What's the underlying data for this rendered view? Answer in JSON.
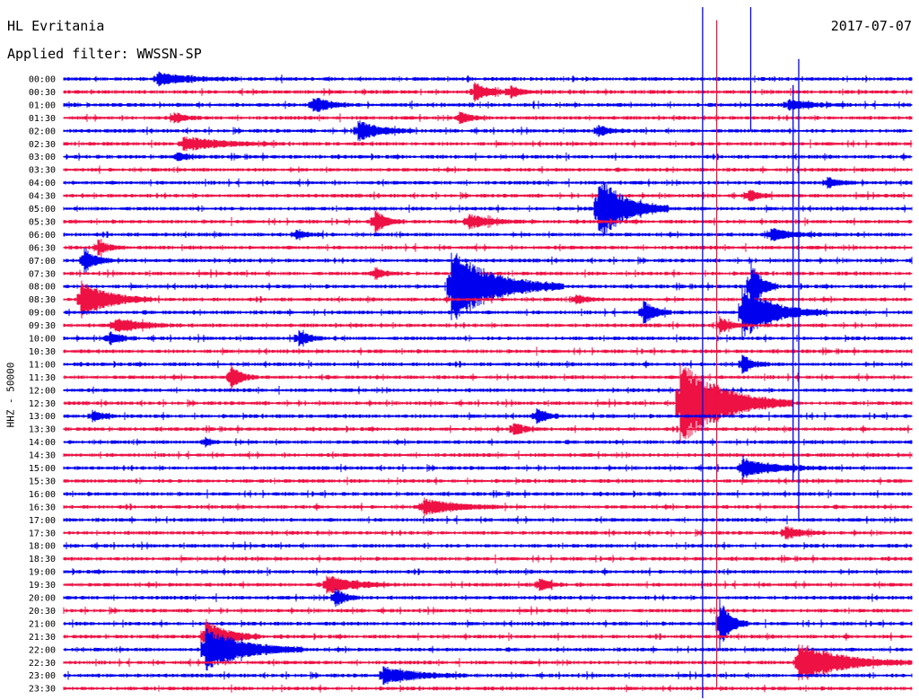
{
  "header": {
    "station": "HL Evritania",
    "date": "2017-07-07",
    "filter_label": "Applied filter: WWSSN-SP"
  },
  "channel_label": "HHZ - 50000",
  "colors": {
    "odd": "#0000ee",
    "even": "#ee1144"
  },
  "chart_data": {
    "type": "line",
    "description": "helicorder",
    "title": "HL Evritania",
    "xlabel": "",
    "ylabel": "HHZ - 50000",
    "row_labels": [
      "00:00",
      "00:30",
      "01:00",
      "01:30",
      "02:00",
      "02:30",
      "03:00",
      "03:30",
      "04:00",
      "04:30",
      "05:00",
      "05:30",
      "06:00",
      "06:30",
      "07:00",
      "07:30",
      "08:00",
      "08:30",
      "09:00",
      "09:30",
      "10:00",
      "10:30",
      "11:00",
      "11:30",
      "12:00",
      "12:30",
      "13:00",
      "13:30",
      "14:00",
      "14:30",
      "15:00",
      "15:30",
      "16:00",
      "16:30",
      "17:00",
      "17:30",
      "18:00",
      "18:30",
      "19:00",
      "19:30",
      "20:00",
      "20:30",
      "21:00",
      "21:30",
      "22:00",
      "22:30",
      "23:00",
      "23:30"
    ],
    "minutes_per_row": 30,
    "series_colors": [
      "#0000ee",
      "#ee1144"
    ],
    "events": [
      {
        "row": 0,
        "minute": 3.3,
        "amp": 7,
        "len": 3
      },
      {
        "row": 1,
        "minute": 14.5,
        "amp": 10,
        "len": 1.5
      },
      {
        "row": 1,
        "minute": 15.8,
        "amp": 7,
        "len": 1
      },
      {
        "row": 2,
        "minute": 8.8,
        "amp": 10,
        "len": 1.5
      },
      {
        "row": 2,
        "minute": 25.6,
        "amp": 6,
        "len": 2
      },
      {
        "row": 3,
        "minute": 3.9,
        "amp": 6,
        "len": 1
      },
      {
        "row": 3,
        "minute": 14.0,
        "amp": 7,
        "len": 1
      },
      {
        "row": 4,
        "minute": 10.4,
        "amp": 12,
        "len": 2
      },
      {
        "row": 4,
        "minute": 18.9,
        "amp": 7,
        "len": 1
      },
      {
        "row": 5,
        "minute": 4.2,
        "amp": 8,
        "len": 3.5
      },
      {
        "row": 6,
        "minute": 4.0,
        "amp": 5,
        "len": 1
      },
      {
        "row": 8,
        "minute": 27.0,
        "amp": 6,
        "len": 1
      },
      {
        "row": 9,
        "minute": 24.2,
        "amp": 8,
        "len": 1
      },
      {
        "row": 10,
        "minute": 18.9,
        "amp": 38,
        "len": 2.5
      },
      {
        "row": 11,
        "minute": 11.0,
        "amp": 14,
        "len": 1
      },
      {
        "row": 11,
        "minute": 14.3,
        "amp": 8,
        "len": 2
      },
      {
        "row": 12,
        "minute": 8.2,
        "amp": 5,
        "len": 1
      },
      {
        "row": 12,
        "minute": 25.0,
        "amp": 7,
        "len": 2
      },
      {
        "row": 13,
        "minute": 1.2,
        "amp": 9,
        "len": 1
      },
      {
        "row": 14,
        "minute": 0.7,
        "amp": 16,
        "len": 1
      },
      {
        "row": 15,
        "minute": 11.0,
        "amp": 6,
        "len": 1
      },
      {
        "row": 16,
        "minute": 13.7,
        "amp": 42,
        "len": 4
      },
      {
        "row": 16,
        "minute": 24.3,
        "amp": 30,
        "len": 1
      },
      {
        "row": 17,
        "minute": 0.6,
        "amp": 22,
        "len": 2.5
      },
      {
        "row": 17,
        "minute": 18.1,
        "amp": 6,
        "len": 1
      },
      {
        "row": 18,
        "minute": 20.5,
        "amp": 14,
        "len": 1
      },
      {
        "row": 18,
        "minute": 24.0,
        "amp": 30,
        "len": 3
      },
      {
        "row": 19,
        "minute": 1.8,
        "amp": 8,
        "len": 2.5
      },
      {
        "row": 19,
        "minute": 23.2,
        "amp": 10,
        "len": 1
      },
      {
        "row": 20,
        "minute": 1.6,
        "amp": 8,
        "len": 1
      },
      {
        "row": 20,
        "minute": 8.3,
        "amp": 9,
        "len": 1
      },
      {
        "row": 22,
        "minute": 24.0,
        "amp": 10,
        "len": 1
      },
      {
        "row": 23,
        "minute": 5.9,
        "amp": 14,
        "len": 1
      },
      {
        "row": 25,
        "minute": 21.8,
        "amp": 50,
        "len": 4
      },
      {
        "row": 26,
        "minute": 1.0,
        "amp": 6,
        "len": 1
      },
      {
        "row": 26,
        "minute": 16.7,
        "amp": 10,
        "len": 1
      },
      {
        "row": 27,
        "minute": 15.9,
        "amp": 8,
        "len": 1
      },
      {
        "row": 28,
        "minute": 5.0,
        "amp": 6,
        "len": 0.5
      },
      {
        "row": 30,
        "minute": 24.0,
        "amp": 10,
        "len": 3
      },
      {
        "row": 33,
        "minute": 12.7,
        "amp": 10,
        "len": 3
      },
      {
        "row": 35,
        "minute": 25.5,
        "amp": 8,
        "len": 1.5
      },
      {
        "row": 39,
        "minute": 9.3,
        "amp": 10,
        "len": 2.5
      },
      {
        "row": 39,
        "minute": 16.8,
        "amp": 8,
        "len": 1
      },
      {
        "row": 40,
        "minute": 9.6,
        "amp": 10,
        "len": 1
      },
      {
        "row": 42,
        "minute": 23.2,
        "amp": 30,
        "len": 1
      },
      {
        "row": 43,
        "minute": 5.0,
        "amp": 20,
        "len": 2
      },
      {
        "row": 44,
        "minute": 5.0,
        "amp": 26,
        "len": 3.5
      },
      {
        "row": 45,
        "minute": 26.0,
        "amp": 22,
        "len": 4
      },
      {
        "row": 46,
        "minute": 11.3,
        "amp": 10,
        "len": 3
      }
    ],
    "spikes": [
      {
        "minute": 22.6,
        "row_start": 0,
        "row_end": 48
      },
      {
        "minute": 24.3,
        "row_start": 0,
        "row_end": 4
      },
      {
        "minute": 23.1,
        "row_start": 1,
        "row_end": 47
      },
      {
        "minute": 26.0,
        "row_start": 4,
        "row_end": 34
      },
      {
        "minute": 25.8,
        "row_start": 6,
        "row_end": 31
      }
    ]
  }
}
